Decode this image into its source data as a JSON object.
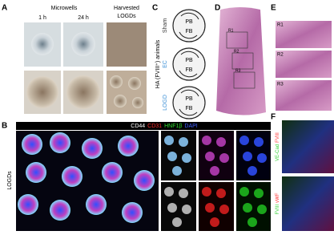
{
  "panel_labels": [
    "A",
    "B",
    "C",
    "D",
    "E",
    "F"
  ],
  "panel_a": {
    "title": "Microwells",
    "columns": [
      "1 h",
      "24 h"
    ],
    "harvested": [
      "Harvested",
      "LOGDs"
    ]
  },
  "panel_b": {
    "stains": [
      {
        "name": "CD44",
        "color": "#ffffff"
      },
      {
        "name": "CD31",
        "color": "#ff3030"
      },
      {
        "name": "HNF1β",
        "color": "#30e030"
      },
      {
        "name": "DAPI",
        "color": "#4060ff"
      }
    ],
    "row_label": "LOGDs"
  },
  "panel_c": {
    "axis_label": "HA (FVIII⁺) animals",
    "groups": [
      {
        "name": "Sham",
        "color": "#333333"
      },
      {
        "name": "EC",
        "color": "#3b8fd6"
      },
      {
        "name": "LOGD",
        "color": "#3b8fd6"
      }
    ],
    "site_labels": [
      "PB",
      "FB"
    ]
  },
  "panel_e": {
    "regions": [
      "R1",
      "R2",
      "R3"
    ]
  },
  "panel_f": {
    "rows": [
      [
        {
          "text": "VE-Cad",
          "color": "#30d030"
        },
        {
          "text": "FVIII",
          "color": "#ff3030"
        }
      ],
      [
        {
          "text": "FVIII",
          "color": "#30d030"
        },
        {
          "text": "vWF",
          "color": "#ff3030"
        }
      ]
    ]
  }
}
